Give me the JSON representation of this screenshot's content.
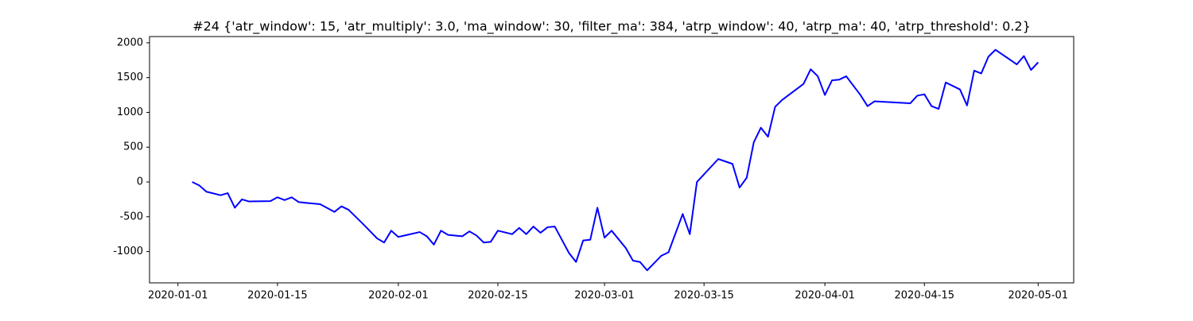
{
  "chart_data": {
    "type": "line",
    "title": "#24 {'atr_window': 15, 'atr_multiply': 3.0, 'ma_window': 30, 'filter_ma': 384, 'atrp_window': 40, 'atrp_ma': 40, 'atrp_threshold': 0.2}",
    "x": [
      "2020-01-03",
      "2020-01-04",
      "2020-01-05",
      "2020-01-07",
      "2020-01-08",
      "2020-01-09",
      "2020-01-10",
      "2020-01-11",
      "2020-01-14",
      "2020-01-15",
      "2020-01-16",
      "2020-01-17",
      "2020-01-18",
      "2020-01-21",
      "2020-01-23",
      "2020-01-24",
      "2020-01-25",
      "2020-01-27",
      "2020-01-29",
      "2020-01-30",
      "2020-01-31",
      "2020-02-01",
      "2020-02-04",
      "2020-02-05",
      "2020-02-06",
      "2020-02-07",
      "2020-02-08",
      "2020-02-10",
      "2020-02-11",
      "2020-02-12",
      "2020-02-13",
      "2020-02-14",
      "2020-02-15",
      "2020-02-17",
      "2020-02-18",
      "2020-02-19",
      "2020-02-20",
      "2020-02-21",
      "2020-02-22",
      "2020-02-23",
      "2020-02-24",
      "2020-02-25",
      "2020-02-26",
      "2020-02-27",
      "2020-02-28",
      "2020-02-29",
      "2020-03-01",
      "2020-03-02",
      "2020-03-04",
      "2020-03-05",
      "2020-03-06",
      "2020-03-07",
      "2020-03-09",
      "2020-03-10",
      "2020-03-12",
      "2020-03-13",
      "2020-03-14",
      "2020-03-17",
      "2020-03-19",
      "2020-03-20",
      "2020-03-21",
      "2020-03-22",
      "2020-03-23",
      "2020-03-24",
      "2020-03-25",
      "2020-03-26",
      "2020-03-29",
      "2020-03-30",
      "2020-03-31",
      "2020-04-01",
      "2020-04-02",
      "2020-04-03",
      "2020-04-04",
      "2020-04-06",
      "2020-04-07",
      "2020-04-08",
      "2020-04-13",
      "2020-04-14",
      "2020-04-15",
      "2020-04-16",
      "2020-04-17",
      "2020-04-18",
      "2020-04-20",
      "2020-04-21",
      "2020-04-22",
      "2020-04-23",
      "2020-04-24",
      "2020-04-25",
      "2020-04-26",
      "2020-04-28",
      "2020-04-29",
      "2020-04-30",
      "2020-05-01"
    ],
    "values": [
      0,
      -50,
      -140,
      -190,
      -160,
      -370,
      -250,
      -280,
      -275,
      -220,
      -260,
      -220,
      -290,
      -320,
      -430,
      -350,
      -400,
      -600,
      -810,
      -870,
      -700,
      -790,
      -720,
      -780,
      -900,
      -700,
      -760,
      -780,
      -710,
      -770,
      -870,
      -860,
      -700,
      -750,
      -660,
      -750,
      -640,
      -730,
      -650,
      -640,
      -830,
      -1020,
      -1150,
      -840,
      -830,
      -370,
      -800,
      -700,
      -950,
      -1130,
      -1150,
      -1270,
      -1060,
      -1010,
      -460,
      -750,
      0,
      330,
      260,
      -80,
      60,
      570,
      780,
      650,
      1080,
      1180,
      1410,
      1620,
      1520,
      1250,
      1460,
      1470,
      1520,
      1250,
      1090,
      1160,
      1130,
      1240,
      1260,
      1090,
      1050,
      1430,
      1330,
      1100,
      1600,
      1560,
      1800,
      1900,
      1830,
      1690,
      1810,
      1610,
      1720
    ],
    "color": "#0000ff",
    "xlim": [
      "2019-12-28",
      "2020-05-06"
    ],
    "xticks": [
      "2020-01-01",
      "2020-01-15",
      "2020-02-01",
      "2020-02-15",
      "2020-03-01",
      "2020-03-15",
      "2020-04-01",
      "2020-04-15",
      "2020-05-01"
    ],
    "ylim": [
      -1450,
      2090
    ],
    "yticks": [
      -1000,
      -500,
      0,
      500,
      1000,
      1500,
      2000
    ],
    "grid": false
  }
}
